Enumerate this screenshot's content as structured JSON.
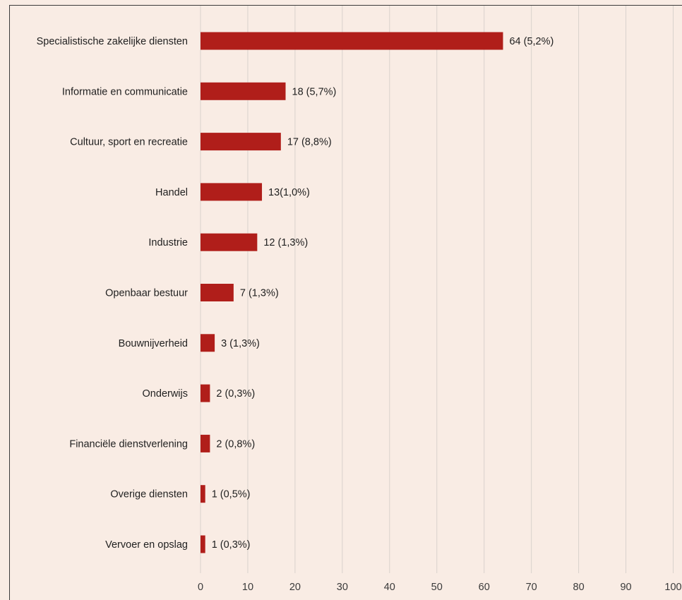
{
  "chart_data": {
    "type": "bar",
    "orientation": "horizontal",
    "title": "",
    "xlabel": "",
    "ylabel": "",
    "categories": [
      "Specialistische zakelijke diensten",
      "Informatie en communicatie",
      "Cultuur, sport en recreatie",
      "Handel",
      "Industrie",
      "Openbaar bestuur",
      "Bouwnijverheid",
      "Onderwijs",
      "Financiële dienstverlening",
      "Overige diensten",
      "Vervoer en opslag"
    ],
    "values": [
      64,
      18,
      17,
      13,
      12,
      7,
      3,
      2,
      2,
      1,
      1
    ],
    "data_labels": [
      "64 (5,2%)",
      "18 (5,7%)",
      "17 (8,8%)",
      "13(1,0%)",
      "12 (1,3%)",
      "7 (1,3%)",
      "3 (1,3%)",
      "2 (0,3%)",
      "2 (0,8%)",
      "1 (0,5%)",
      "1 (0,3%)"
    ],
    "xlim": [
      0,
      100
    ],
    "x_ticks": [
      "0",
      "10",
      "20",
      "30",
      "40",
      "50",
      "60",
      "70",
      "80",
      "90",
      "100"
    ],
    "grid": "vertical",
    "legend": "none",
    "colors": {
      "bar": "#b01e1a",
      "background": "#f9ece4",
      "grid": "#d9d2cc"
    }
  }
}
